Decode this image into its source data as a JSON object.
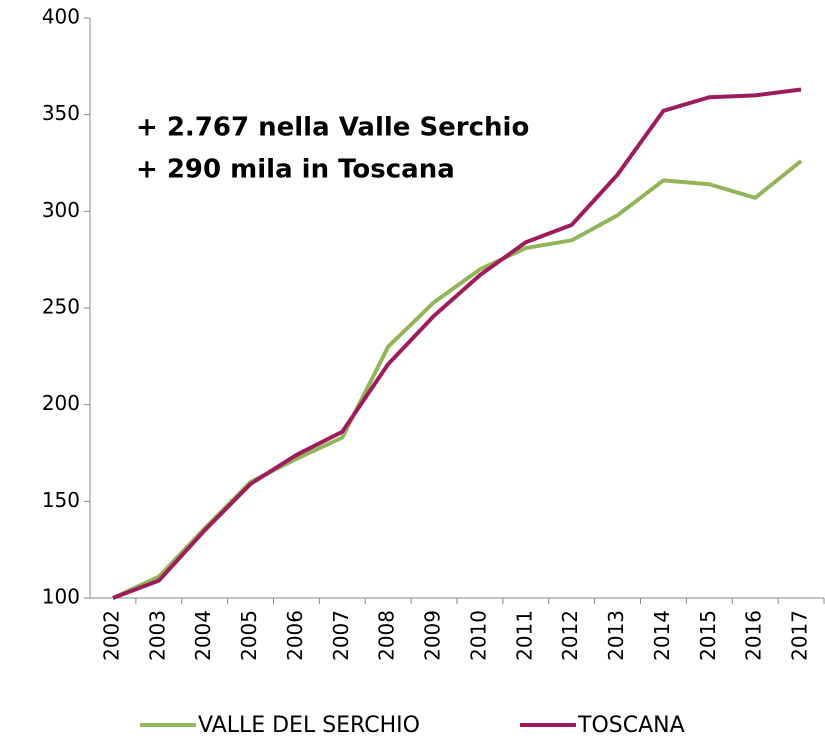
{
  "chart_data": {
    "type": "line",
    "annotations": [
      "+ 2.767 nella Valle Serchio",
      "+ 290 mila in Toscana"
    ],
    "categories": [
      "2002",
      "2003",
      "2004",
      "2005",
      "2006",
      "2007",
      "2008",
      "2009",
      "2010",
      "2011",
      "2012",
      "2013",
      "2014",
      "2015",
      "2016",
      "2017"
    ],
    "series": [
      {
        "name": "VALLE DEL SERCHIO",
        "color": "#93b55a",
        "values": [
          100,
          111,
          136,
          160,
          172,
          183,
          230,
          253,
          270,
          281,
          285,
          298,
          316,
          314,
          307,
          326
        ]
      },
      {
        "name": "TOSCANA",
        "color": "#9e1c5c",
        "values": [
          100,
          109,
          135,
          159,
          174,
          186,
          221,
          246,
          267,
          284,
          293,
          319,
          352,
          359,
          360,
          363
        ]
      }
    ],
    "ylim": [
      100,
      400
    ],
    "yticks": [
      100,
      150,
      200,
      250,
      300,
      350,
      400
    ],
    "legend": "bottom"
  }
}
